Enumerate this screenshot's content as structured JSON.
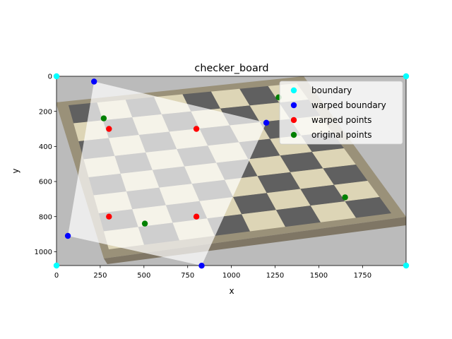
{
  "chart_data": {
    "type": "scatter",
    "title": "checker_board",
    "xlabel": "x",
    "ylabel": "y",
    "xlim": [
      0,
      1999
    ],
    "ylim": [
      1079,
      0
    ],
    "y_inverted": true,
    "grid": false,
    "xticks": [
      0,
      250,
      500,
      750,
      1000,
      1250,
      1500,
      1750
    ],
    "yticks": [
      0,
      200,
      400,
      600,
      800,
      1000
    ],
    "legend_position": "top-right",
    "background_image": "perspective photo of a wooden checkerboard, dimmed with gray overlay",
    "warped_region_polygon": [
      [
        215,
        30
      ],
      [
        1200,
        265
      ],
      [
        830,
        1080
      ],
      [
        65,
        910
      ]
    ],
    "series": [
      {
        "name": "boundary",
        "color": "#00ffff",
        "points": [
          [
            0,
            0
          ],
          [
            1999,
            0
          ],
          [
            1999,
            1079
          ],
          [
            0,
            1079
          ]
        ]
      },
      {
        "name": "warped boundary",
        "color": "#0000ff",
        "points": [
          [
            215,
            30
          ],
          [
            1200,
            265
          ],
          [
            830,
            1080
          ],
          [
            65,
            910
          ]
        ]
      },
      {
        "name": "warped points",
        "color": "#ff0000",
        "points": [
          [
            300,
            300
          ],
          [
            800,
            300
          ],
          [
            300,
            800
          ],
          [
            800,
            800
          ]
        ]
      },
      {
        "name": "original points",
        "color": "#008000",
        "points": [
          [
            270,
            240
          ],
          [
            1270,
            120
          ],
          [
            1650,
            690
          ],
          [
            505,
            840
          ]
        ]
      }
    ]
  }
}
